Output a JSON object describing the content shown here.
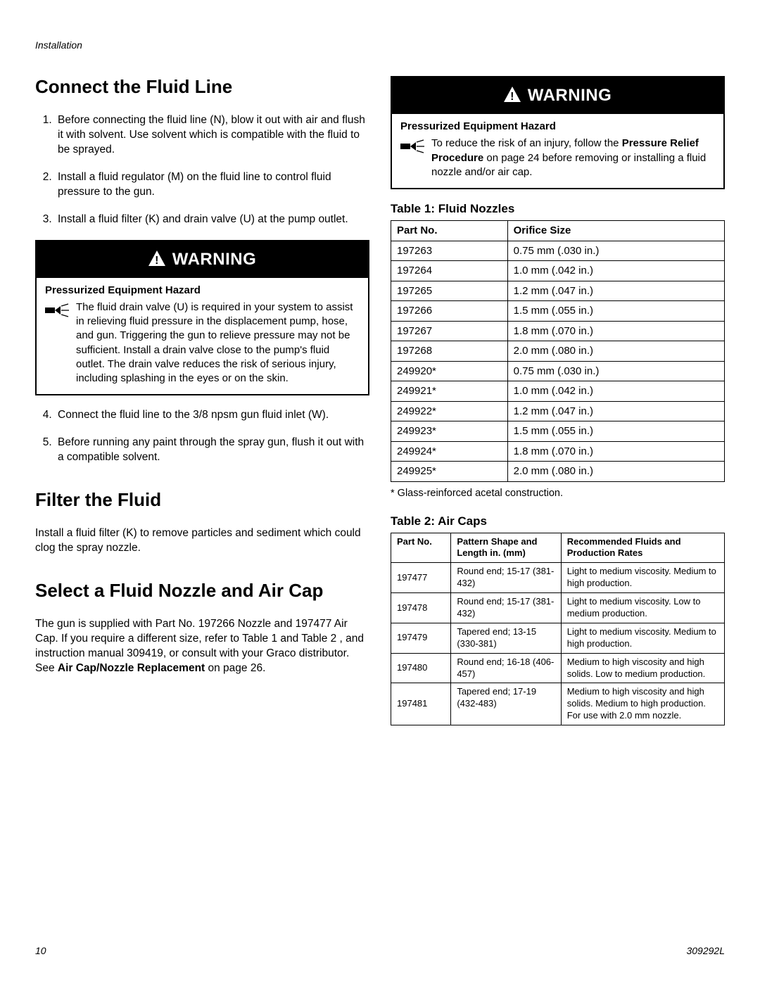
{
  "header": {
    "section": "Installation"
  },
  "footer": {
    "page": "10",
    "docid": "309292L"
  },
  "left": {
    "h_connect": "Connect the Fluid Line",
    "steps_a": [
      "Before connecting the fluid line (N), blow it out with air and flush it with solvent. Use solvent which is compatible with the fluid to be sprayed.",
      "Install a fluid regulator (M) on the fluid line to control fluid pressure to the gun.",
      "Install a fluid filter (K) and drain valve (U) at the pump outlet."
    ],
    "warning1": {
      "label": "WARNING",
      "hazard_title": "Pressurized Equipment Hazard",
      "text": "The fluid drain valve (U) is required in your system to assist in relieving fluid pressure in the displacement pump, hose, and gun. Triggering the gun to relieve pressure may not be sufficient. Install a drain valve close to the pump's fluid outlet. The drain valve reduces the risk of serious injury, including splashing in the eyes or on the skin."
    },
    "steps_b": [
      "Connect the fluid line to the 3/8 npsm gun fluid inlet (W).",
      "Before running any paint through the spray gun, flush it out with a compatible solvent."
    ],
    "h_filter": "Filter the Fluid",
    "filter_text": "Install a fluid filter (K) to remove particles and sediment which could clog the spray nozzle.",
    "h_select": "Select a Fluid Nozzle and Air Cap",
    "select_text_pre": "The gun is supplied with Part No. 197266 Nozzle and 197477 Air Cap. If you require a different size, refer to Table 1 and Table 2 , and instruction manual 309419, or consult with your Graco distributor. See ",
    "select_text_bold": "Air Cap/Nozzle Replacement",
    "select_text_post": " on page 26."
  },
  "right": {
    "warning2": {
      "label": "WARNING",
      "hazard_title": "Pressurized Equipment Hazard",
      "line1": "To reduce the risk of an injury, follow the ",
      "bold": "Pressure Relief Procedure",
      "line2": " on page 24 before removing or installing a fluid nozzle and/or air cap."
    },
    "table1": {
      "title": "Table 1: Fluid Nozzles",
      "headers": [
        "Part No.",
        "Orifice Size"
      ],
      "rows": [
        [
          "197263",
          "0.75 mm (.030 in.)"
        ],
        [
          "197264",
          "1.0 mm (.042 in.)"
        ],
        [
          "197265",
          "1.2 mm (.047 in.)"
        ],
        [
          "197266",
          "1.5 mm (.055 in.)"
        ],
        [
          "197267",
          "1.8 mm (.070 in.)"
        ],
        [
          "197268",
          "2.0 mm (.080 in.)"
        ],
        [
          "249920*",
          "0.75 mm (.030 in.)"
        ],
        [
          "249921*",
          "1.0 mm (.042 in.)"
        ],
        [
          "249922*",
          "1.2 mm (.047 in.)"
        ],
        [
          "249923*",
          "1.5 mm (.055 in.)"
        ],
        [
          "249924*",
          "1.8 mm (.070 in.)"
        ],
        [
          "249925*",
          "2.0 mm (.080 in.)"
        ]
      ],
      "footnote": "* Glass-reinforced acetal construction."
    },
    "table2": {
      "title": "Table 2: Air Caps",
      "headers": [
        "Part No.",
        "Pattern Shape and Length in. (mm)",
        "Recommended Fluids and Production Rates"
      ],
      "rows": [
        [
          "197477",
          "Round end; 15-17 (381-432)",
          "Light to medium viscosity. Medium to high production."
        ],
        [
          "197478",
          "Round end; 15-17 (381-432)",
          "Light to medium viscosity. Low to medium production."
        ],
        [
          "197479",
          "Tapered end; 13-15 (330-381)",
          "Light to medium viscosity. Medium to high production."
        ],
        [
          "197480",
          "Round end; 16-18 (406-457)",
          "Medium to high viscosity and high solids. Low to medium production."
        ],
        [
          "197481",
          "Tapered end; 17-19 (432-483)",
          "Medium to high viscosity and high solids. Medium to high production. For use with 2.0 mm nozzle."
        ]
      ]
    }
  },
  "styles": {
    "bg": "#ffffff",
    "text": "#000000",
    "warning_bg": "#000000",
    "warning_fg": "#ffffff",
    "body_fontsize": 15.5,
    "title_fontsize": 26,
    "table_border": "#000000"
  }
}
